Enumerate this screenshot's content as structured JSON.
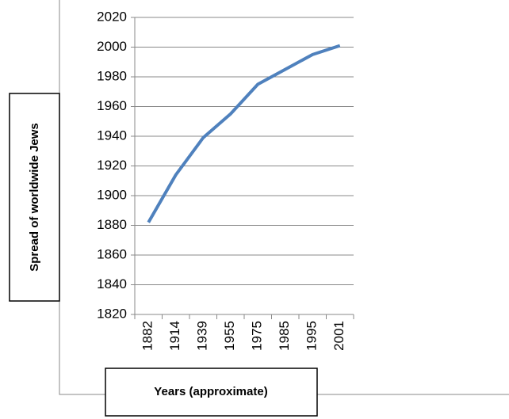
{
  "chart_data": {
    "type": "line",
    "ylabel": "Spread of worldwide Jews",
    "xlabel": "Years  (approximate)",
    "categories": [
      "1882",
      "1914",
      "1939",
      "1955",
      "1975",
      "1985",
      "1995",
      "2001"
    ],
    "series": [
      {
        "name": "Spread of worldwide Jews",
        "color": "#4f81bd",
        "values": [
          1882,
          1914,
          1939,
          1955,
          1975,
          1985,
          1995,
          2001
        ]
      }
    ],
    "ylim": [
      1820,
      2020
    ],
    "yticks": [
      1820,
      1840,
      1860,
      1880,
      1900,
      1920,
      1940,
      1960,
      1980,
      2000,
      2020
    ],
    "grid": true
  }
}
